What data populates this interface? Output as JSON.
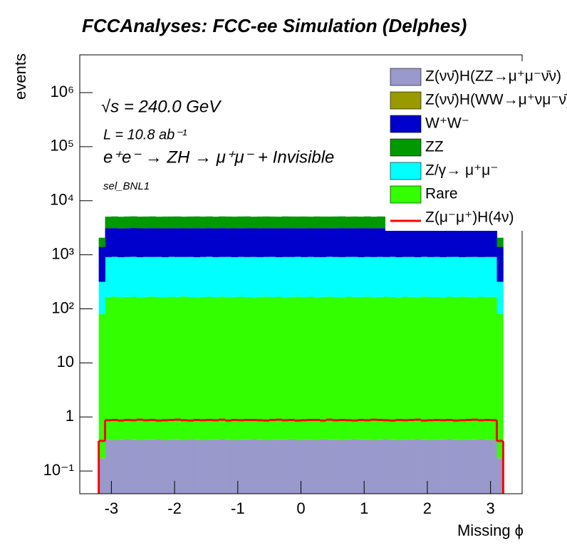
{
  "chart_data": {
    "type": "histogram",
    "stacked": true,
    "log_y": true,
    "title": "FCCAnalyses: FCC-ee Simulation (Delphes)",
    "xlabel": "Missing ϕ",
    "ylabel": "events",
    "annotations": [
      "√s = 240.0 GeV",
      "L = 10.8 ab⁻¹",
      "e⁺e⁻ → ZH → μ⁺μ⁻ + Invisible",
      "sel_BNL1"
    ],
    "xlim": [
      -3.5,
      3.5
    ],
    "xticks": [
      -3,
      -2,
      -1,
      0,
      1,
      2,
      3
    ],
    "ylim": [
      0.038,
      5000000
    ],
    "yticks": [
      {
        "value": 0.1,
        "label": "10⁻¹"
      },
      1,
      10,
      {
        "value": 100,
        "label": "10²"
      },
      {
        "value": 1000,
        "label": "10³"
      },
      {
        "value": 10000,
        "label": "10⁴"
      },
      {
        "value": 100000,
        "label": "10⁵"
      },
      {
        "value": 1000000,
        "label": "10⁶"
      }
    ],
    "bins": [
      -3.2,
      -3.1,
      -3.0,
      -2.9,
      -2.8,
      -2.7,
      -2.6,
      -2.5,
      -2.4,
      -2.3,
      -2.2,
      -2.1,
      -2.0,
      -1.9,
      -1.8,
      -1.7,
      -1.6,
      -1.5,
      -1.4,
      -1.3,
      -1.2,
      -1.1,
      -1.0,
      -0.9,
      -0.8,
      -0.7,
      -0.6,
      -0.5,
      -0.4,
      -0.3,
      -0.2,
      -0.1,
      0,
      0.1,
      0.2,
      0.3,
      0.4,
      0.5,
      0.6,
      0.7,
      0.8,
      0.9,
      1.0,
      1.1,
      1.2,
      1.3,
      1.4,
      1.5,
      1.6,
      1.7,
      1.8,
      1.9,
      2.0,
      2.1,
      2.2,
      2.3,
      2.4,
      2.5,
      2.6,
      2.7,
      2.8,
      2.9,
      3.0,
      3.1,
      3.2
    ],
    "legend_order": [
      0,
      1,
      4,
      5,
      3,
      2,
      6
    ],
    "series": [
      {
        "name": "Z(νν̄)H(ZZ→μ⁺μ⁻ν̄ν)",
        "color": "#9999cc",
        "values": [
          0.17,
          0.38,
          0.37,
          0.38,
          0.39,
          0.38,
          0.37,
          0.38,
          0.38,
          0.39,
          0.37,
          0.38,
          0.38,
          0.37,
          0.39,
          0.38,
          0.37,
          0.38,
          0.38,
          0.39,
          0.38,
          0.37,
          0.38,
          0.38,
          0.39,
          0.38,
          0.37,
          0.38,
          0.38,
          0.38,
          0.39,
          0.37,
          0.38,
          0.38,
          0.37,
          0.39,
          0.38,
          0.38,
          0.37,
          0.38,
          0.39,
          0.38,
          0.38,
          0.37,
          0.38,
          0.39,
          0.38,
          0.37,
          0.38,
          0.38,
          0.39,
          0.38,
          0.37,
          0.38,
          0.38,
          0.39,
          0.38,
          0.37,
          0.38,
          0.38,
          0.39,
          0.38,
          0.37,
          0.17
        ]
      },
      {
        "name": "Z(νν̄)H(WW→μ⁺νμ⁻ν̄)",
        "color": "#999900",
        "values": [
          0.002,
          0.004,
          0.004,
          0.004,
          0.004,
          0.004,
          0.004,
          0.004,
          0.004,
          0.004,
          0.004,
          0.004,
          0.004,
          0.004,
          0.004,
          0.004,
          0.004,
          0.004,
          0.004,
          0.004,
          0.004,
          0.004,
          0.004,
          0.004,
          0.004,
          0.004,
          0.004,
          0.004,
          0.004,
          0.004,
          0.004,
          0.004,
          0.004,
          0.004,
          0.004,
          0.004,
          0.004,
          0.004,
          0.004,
          0.004,
          0.004,
          0.004,
          0.004,
          0.004,
          0.004,
          0.004,
          0.004,
          0.004,
          0.004,
          0.004,
          0.004,
          0.004,
          0.004,
          0.004,
          0.004,
          0.004,
          0.004,
          0.004,
          0.004,
          0.004,
          0.004,
          0.004,
          0.004,
          0.002
        ]
      },
      {
        "name": "Rare",
        "color": "#33ff00",
        "values": [
          80,
          165,
          168,
          164,
          166,
          167,
          163,
          166,
          168,
          165,
          164,
          167,
          166,
          169,
          165,
          163,
          166,
          167,
          165,
          168,
          164,
          166,
          167,
          165,
          163,
          166,
          168,
          165,
          167,
          164,
          166,
          168,
          165,
          167,
          163,
          166,
          168,
          165,
          164,
          167,
          166,
          165,
          168,
          164,
          166,
          167,
          165,
          163,
          167,
          166,
          164,
          168,
          165,
          166,
          163,
          167,
          165,
          168,
          166,
          164,
          167,
          165,
          166,
          80
        ]
      },
      {
        "name": "Z/γ→ μ⁺μ⁻",
        "color": "#00ffff",
        "values": [
          236,
          742,
          750,
          738,
          746,
          752,
          740,
          747,
          744,
          749,
          737,
          751,
          745,
          742,
          748,
          739,
          746,
          753,
          741,
          744,
          750,
          738,
          747,
          743,
          749,
          740,
          745,
          752,
          737,
          746,
          744,
          750,
          741,
          748,
          743,
          739,
          751,
          745,
          742,
          747,
          750,
          738,
          746,
          744,
          749,
          741,
          753,
          740,
          745,
          747,
          739,
          750,
          743,
          748,
          742,
          746,
          751,
          737,
          744,
          749,
          740,
          747,
          745,
          236
        ]
      },
      {
        "name": "W⁺W⁻",
        "color": "#0000cc",
        "values": [
          1084,
          2180,
          2200,
          2175,
          2195,
          2210,
          2185,
          2190,
          2205,
          2170,
          2195,
          2188,
          2200,
          2178,
          2192,
          2210,
          2185,
          2198,
          2176,
          2204,
          2190,
          2182,
          2196,
          2208,
          2173,
          2191,
          2200,
          2186,
          2179,
          2205,
          2194,
          2188,
          2199,
          2177,
          2203,
          2190,
          2184,
          2197,
          2209,
          2181,
          2193,
          2186,
          2202,
          2175,
          2198,
          2190,
          2183,
          2206,
          2188,
          2196,
          2179,
          2201,
          2192,
          2185,
          2207,
          2174,
          2195,
          2189,
          2203,
          2180,
          2197,
          2186,
          2192,
          1084
        ]
      },
      {
        "name": "ZZ",
        "color": "#009900",
        "values": [
          670,
          1990,
          2010,
          1985,
          2005,
          2015,
          1995,
          2000,
          2012,
          1980,
          2003,
          1998,
          2008,
          1988,
          2002,
          2016,
          1993,
          2006,
          1984,
          2011,
          1999,
          1991,
          2004,
          2014,
          1982,
          2001,
          2009,
          1994,
          1987,
          2013,
          2003,
          1996,
          2007,
          1986,
          2010,
          1999,
          1992,
          2005,
          2017,
          1989,
          2002,
          1995,
          2011,
          1983,
          2006,
          1998,
          1990,
          2012,
          1997,
          2004,
          1988,
          2009,
          2000,
          1993,
          2015,
          1981,
          2003,
          1996,
          2010,
          1989,
          2005,
          1994,
          2001,
          670
        ]
      },
      {
        "name": "Z(μ⁻μ⁺)H(4ν)",
        "color": "#ff0000",
        "histtype": "step",
        "values": [
          0.36,
          0.87,
          0.88,
          0.86,
          0.88,
          0.87,
          0.89,
          0.87,
          0.88,
          0.86,
          0.87,
          0.88,
          0.89,
          0.87,
          0.86,
          0.88,
          0.87,
          0.88,
          0.87,
          0.89,
          0.86,
          0.88,
          0.87,
          0.88,
          0.88,
          0.87,
          0.86,
          0.88,
          0.89,
          0.87,
          0.88,
          0.86,
          0.87,
          0.88,
          0.88,
          0.86,
          0.89,
          0.87,
          0.88,
          0.87,
          0.86,
          0.88,
          0.87,
          0.89,
          0.88,
          0.87,
          0.86,
          0.88,
          0.87,
          0.88,
          0.89,
          0.86,
          0.87,
          0.88,
          0.87,
          0.88,
          0.86,
          0.87,
          0.88,
          0.89,
          0.87,
          0.88,
          0.87,
          0.36
        ]
      }
    ]
  }
}
